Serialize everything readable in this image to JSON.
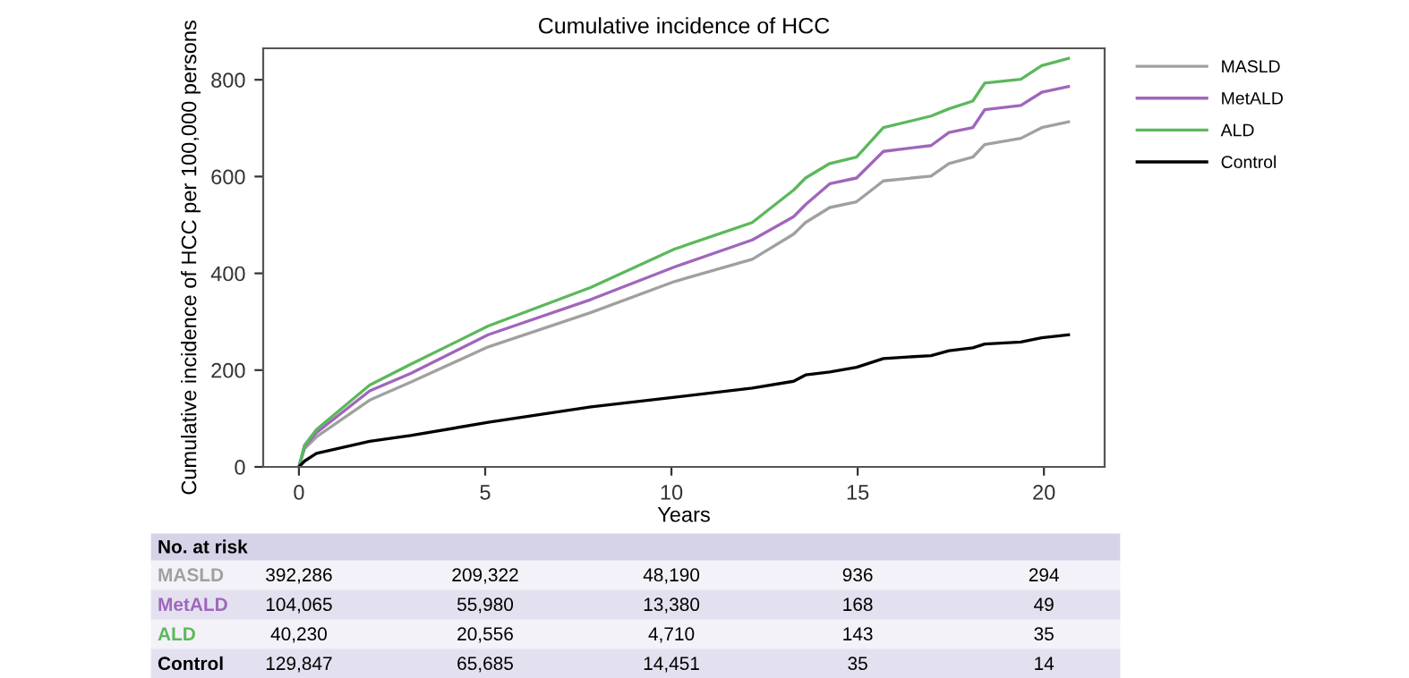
{
  "chart_data": {
    "type": "line",
    "title": "Cumulative incidence of HCC",
    "xlabel": "Years",
    "ylabel": "Cumulative incidence of HCC per 100,000 persons",
    "x": [
      0,
      0.15,
      0.47,
      1.9,
      3.0,
      5.08,
      7.84,
      10.08,
      12.17,
      13.28,
      13.6,
      14.25,
      14.97,
      15.69,
      16.97,
      17.45,
      18.09,
      18.41,
      19.38,
      19.94,
      20.66
    ],
    "series": [
      {
        "name": "MASLD",
        "color": "#a0a0a0",
        "values": [
          0,
          38,
          62,
          138,
          175,
          248,
          319,
          383,
          429,
          481,
          505,
          536,
          548,
          591,
          601,
          627,
          640,
          666,
          679,
          701,
          713
        ]
      },
      {
        "name": "MetALD",
        "color": "#a066bb",
        "values": [
          0,
          42,
          71,
          157,
          193,
          273,
          346,
          413,
          469,
          517,
          542,
          585,
          597,
          652,
          664,
          691,
          701,
          738,
          747,
          774,
          786
        ]
      },
      {
        "name": "ALD",
        "color": "#5cb85c",
        "values": [
          0,
          45,
          77,
          169,
          212,
          291,
          371,
          450,
          505,
          572,
          597,
          627,
          640,
          701,
          725,
          740,
          756,
          793,
          801,
          829,
          844
        ]
      },
      {
        "name": "Control",
        "color": "#000000",
        "values": [
          0,
          12,
          28,
          53,
          65,
          92,
          124,
          144,
          163,
          177,
          190,
          196,
          206,
          224,
          230,
          240,
          246,
          254,
          258,
          267,
          273
        ]
      }
    ],
    "xlim": [
      -0.96,
      21.63
    ],
    "ylim": [
      0,
      865
    ],
    "xticks": [
      0,
      5,
      10,
      15,
      20
    ],
    "yticks": [
      0,
      200,
      400,
      600,
      800
    ],
    "grid": false,
    "legend": "right",
    "annotations": [
      "No. at risk",
      "MASLD",
      "392,286",
      "209,322",
      "48,190",
      "936",
      "294",
      "MetALD",
      "104,065",
      "55,980",
      "13,380",
      "168",
      "49",
      "ALD",
      "40,230",
      "20,556",
      "4,710",
      "143",
      "35",
      "Control",
      "129,847",
      "65,685",
      "14,451",
      "35",
      "14"
    ]
  }
}
